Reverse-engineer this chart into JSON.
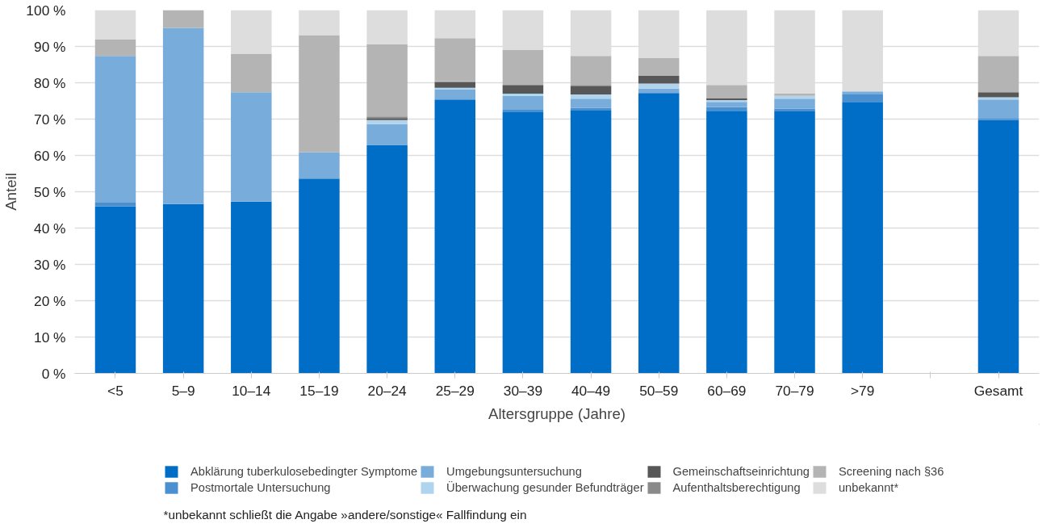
{
  "chart_data": {
    "type": "bar",
    "stacked": true,
    "xlabel": "Altersgruppe (Jahre)",
    "ylabel": "Anteil",
    "categories": [
      "<5",
      "5–9",
      "10–14",
      "15–19",
      "20–24",
      "25–29",
      "30–39",
      "40–49",
      "50–59",
      "60–69",
      "70–79",
      ">79",
      null,
      "Gesamt"
    ],
    "series": [
      {
        "name": "Abklärung tuberkulosebedingter Symptome",
        "color": "#006ec7",
        "values": [
          46.0,
          46.6,
          47.3,
          53.6,
          62.9,
          75.4,
          71.9,
          72.5,
          77.0,
          72.3,
          72.1,
          74.7,
          null,
          69.7
        ]
      },
      {
        "name": "Postmortale Untersuchung",
        "color": "#4a90d0",
        "values": [
          1.0,
          null,
          null,
          null,
          null,
          null,
          0.8,
          0.6,
          0.4,
          1.0,
          0.8,
          2.1,
          null,
          0.6
        ]
      },
      {
        "name": "Umgebungsuntersuchung",
        "color": "#78acdb",
        "values": [
          40.4,
          48.5,
          30.1,
          7.3,
          5.7,
          2.8,
          3.7,
          2.5,
          1.0,
          1.4,
          2.7,
          0.8,
          null,
          5.1
        ]
      },
      {
        "name": "Überwachung gesunder Befundträger",
        "color": "#b0d3ee",
        "values": [
          null,
          null,
          null,
          null,
          1.1,
          0.4,
          0.6,
          1.2,
          1.4,
          0.5,
          0.8,
          null,
          null,
          0.6
        ]
      },
      {
        "name": "Gemeinschaftseinrichtung",
        "color": "#575757",
        "values": [
          null,
          null,
          null,
          null,
          0.6,
          1.6,
          2.4,
          2.2,
          2.1,
          0.6,
          null,
          null,
          null,
          1.4
        ]
      },
      {
        "name": "Aufenthaltsberechtigung",
        "color": "#8a8a8a",
        "values": [
          null,
          null,
          null,
          null,
          0.4,
          0.2,
          null,
          0.4,
          null,
          null,
          null,
          null,
          null,
          null
        ]
      },
      {
        "name": "Screening nach §36",
        "color": "#b4b4b4",
        "values": [
          4.5,
          4.9,
          10.6,
          32.2,
          19.9,
          11.9,
          9.6,
          8.0,
          4.9,
          3.6,
          0.6,
          null,
          null,
          10.0
        ]
      },
      {
        "name": "unbekannt*",
        "color": "#dddddd",
        "values": [
          8.1,
          null,
          12.0,
          6.9,
          9.4,
          7.7,
          11.0,
          12.6,
          13.2,
          20.6,
          23.0,
          22.4,
          null,
          12.6
        ]
      }
    ],
    "ylim": [
      0,
      100
    ],
    "yticks": [
      {
        "value": 0,
        "label": "0 %"
      },
      {
        "value": 10,
        "label": "10 %"
      },
      {
        "value": 20,
        "label": "20 %"
      },
      {
        "value": 30,
        "label": "30 %"
      },
      {
        "value": 40,
        "label": "40 %"
      },
      {
        "value": 50,
        "label": "50 %"
      },
      {
        "value": 60,
        "label": "60 %"
      },
      {
        "value": 70,
        "label": "70 %"
      },
      {
        "value": 80,
        "label": "80 %"
      },
      {
        "value": 90,
        "label": "90 %"
      },
      {
        "value": 100,
        "label": "100 %"
      }
    ],
    "grid": "y",
    "legend": "bottom",
    "annotations": [
      "*unbekannt schließt die Angabe »andere/sonstige« Fallfindung ein"
    ]
  }
}
